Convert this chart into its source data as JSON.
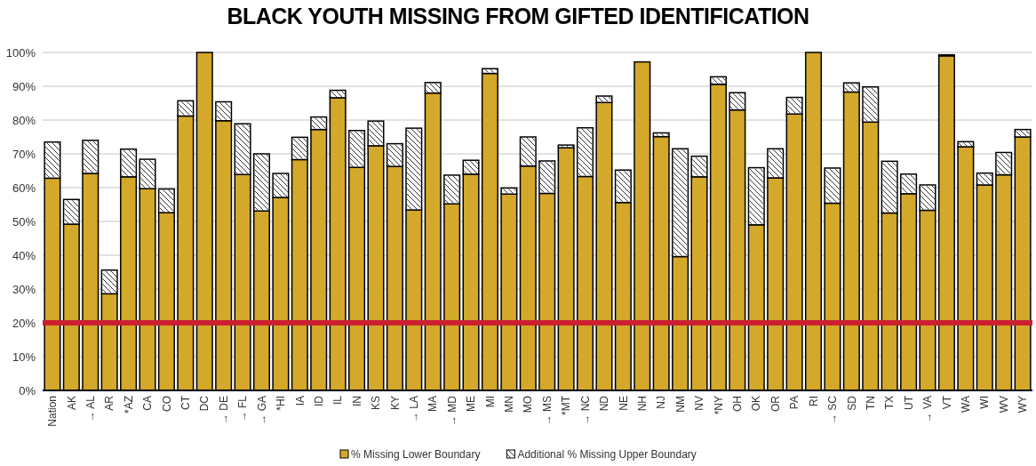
{
  "chart_data": {
    "type": "bar",
    "title": "BLACK YOUTH MISSING FROM GIFTED IDENTIFICATION",
    "stacked": true,
    "categories": [
      "Nation",
      "AK",
      "→ AL",
      "AR",
      "*AZ",
      "CA",
      "CO",
      "CT",
      "DC",
      "→ DE",
      "→ FL",
      "→ GA",
      "*HI",
      "IA",
      "ID",
      "IL",
      "IN",
      "KS",
      "KY",
      "→ LA",
      "MA",
      "→ MD",
      "ME",
      "MI",
      "MN",
      "MO",
      "→ MS",
      "*MT",
      "→ NC",
      "ND",
      "NE",
      "NH",
      "NJ",
      "NM",
      "NV",
      "*NY",
      "OH",
      "OK",
      "OR",
      "PA",
      "RI",
      "→ SC",
      "SD",
      "TN",
      "TX",
      "UT",
      "→ VA",
      "VT",
      "WA",
      "WI",
      "WV",
      "WY"
    ],
    "series": [
      {
        "name": "% Missing Lower Boundary",
        "color": "#d4a82a",
        "values": [
          62.8,
          49.2,
          64.2,
          28.6,
          63.2,
          59.7,
          52.6,
          81.2,
          100,
          79.8,
          63.9,
          53.1,
          57.1,
          68.3,
          77.2,
          86.6,
          66.0,
          72.4,
          66.3,
          53.4,
          88.0,
          55.2,
          64.0,
          93.8,
          58.1,
          66.4,
          58.3,
          71.8,
          63.3,
          85.2,
          55.6,
          97.2,
          75.1,
          39.6,
          63.2,
          90.6,
          83.0,
          49.0,
          62.9,
          81.8,
          100,
          55.4,
          88.3,
          79.4,
          52.5,
          58.2,
          53.3,
          99.0,
          72.1,
          60.8,
          63.8,
          75.0
        ]
      },
      {
        "name": "Additional % Missing Upper Boundary",
        "color": "#ffffff",
        "values": [
          10.7,
          7.3,
          9.8,
          7.0,
          8.2,
          8.7,
          7.0,
          4.5,
          0,
          5.6,
          15.0,
          16.9,
          7.1,
          6.6,
          3.7,
          2.2,
          10.9,
          7.3,
          6.7,
          24.2,
          3.1,
          8.5,
          4.1,
          1.4,
          1.8,
          8.6,
          9.6,
          0.8,
          14.4,
          1.9,
          9.6,
          0,
          1.1,
          31.9,
          6.1,
          2.2,
          5.1,
          16.9,
          8.6,
          4.9,
          0,
          10.4,
          2.7,
          10.4,
          15.3,
          5.8,
          7.5,
          0.3,
          1.5,
          3.5,
          6.6,
          2.2
        ]
      }
    ],
    "ylim": [
      0,
      100
    ],
    "yticks": [
      {
        "value": 0,
        "label": "0%"
      },
      {
        "value": 10,
        "label": "10%"
      },
      {
        "value": 20,
        "label": "20%"
      },
      {
        "value": 30,
        "label": "30%"
      },
      {
        "value": 40,
        "label": "40%"
      },
      {
        "value": 50,
        "label": "50%"
      },
      {
        "value": 60,
        "label": "60%"
      },
      {
        "value": 70,
        "label": "70%"
      },
      {
        "value": 80,
        "label": "80%"
      },
      {
        "value": 90,
        "label": "90%"
      },
      {
        "value": 100,
        "label": "100%"
      }
    ],
    "grid": "y",
    "legend": "bottom",
    "ref_lines": [
      {
        "axis": "y",
        "value": 20,
        "color": "#cc2030"
      }
    ]
  }
}
